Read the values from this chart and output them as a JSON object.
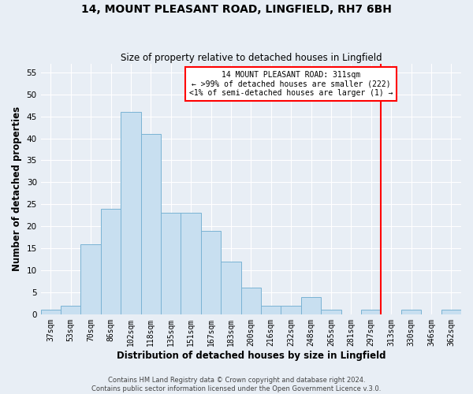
{
  "title": "14, MOUNT PLEASANT ROAD, LINGFIELD, RH7 6BH",
  "subtitle": "Size of property relative to detached houses in Lingfield",
  "xlabel": "Distribution of detached houses by size in Lingfield",
  "ylabel": "Number of detached properties",
  "footer_line1": "Contains HM Land Registry data © Crown copyright and database right 2024.",
  "footer_line2": "Contains public sector information licensed under the Open Government Licence v.3.0.",
  "bin_labels": [
    "37sqm",
    "53sqm",
    "70sqm",
    "86sqm",
    "102sqm",
    "118sqm",
    "135sqm",
    "151sqm",
    "167sqm",
    "183sqm",
    "200sqm",
    "216sqm",
    "232sqm",
    "248sqm",
    "265sqm",
    "281sqm",
    "297sqm",
    "313sqm",
    "330sqm",
    "346sqm",
    "362sqm"
  ],
  "bin_values": [
    1,
    2,
    16,
    24,
    46,
    41,
    23,
    23,
    19,
    12,
    6,
    2,
    2,
    4,
    1,
    0,
    1,
    0,
    1,
    0,
    1
  ],
  "bar_color": "#c8dff0",
  "bar_edge_color": "#7ab3d4",
  "reference_line_color": "red",
  "ylim": [
    0,
    57
  ],
  "yticks": [
    0,
    5,
    10,
    15,
    20,
    25,
    30,
    35,
    40,
    45,
    50,
    55
  ],
  "annotation_line1": "14 MOUNT PLEASANT ROAD: 311sqm",
  "annotation_line2": "← >99% of detached houses are smaller (222)",
  "annotation_line3": "<1% of semi-detached houses are larger (1) →",
  "annotation_box_color": "white",
  "annotation_box_edgecolor": "red",
  "background_color": "#e8eef5",
  "grid_color": "#ffffff",
  "title_fontsize": 10,
  "subtitle_fontsize": 8.5,
  "tick_fontsize": 7,
  "axis_label_fontsize": 8.5,
  "footer_fontsize": 6
}
